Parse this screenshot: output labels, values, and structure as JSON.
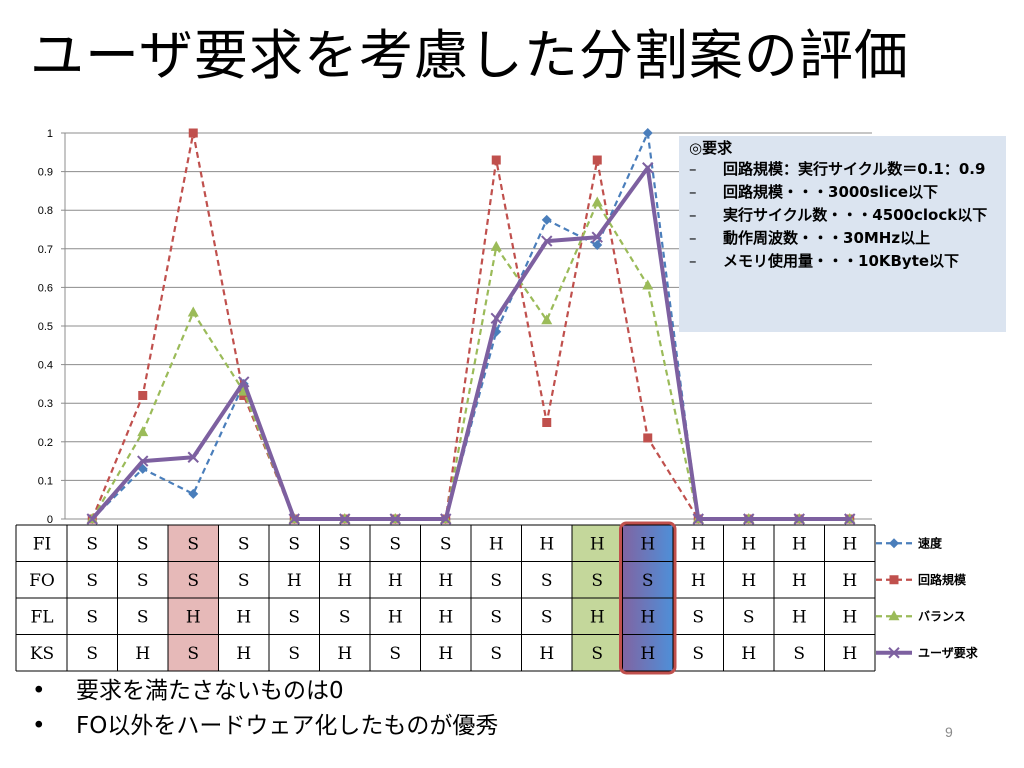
{
  "title": "ユーザ要求を考慮した分割案の評価",
  "chart_data": {
    "type": "line",
    "ylim": [
      0,
      1
    ],
    "yticks": [
      "0",
      "0.1",
      "0.2",
      "0.3",
      "0.4",
      "0.5",
      "0.6",
      "0.7",
      "0.8",
      "0.9",
      "1"
    ],
    "grid": true,
    "legend_position": "right",
    "series": [
      {
        "name": "速度",
        "color": "#4a7ebb",
        "style": "dashed",
        "marker": "diamond",
        "values": [
          0,
          0.13,
          0.065,
          0.35,
          0,
          0,
          0,
          0,
          0.485,
          0.775,
          0.71,
          1.0,
          0,
          0,
          0,
          0
        ]
      },
      {
        "name": "回路規模",
        "color": "#c0504d",
        "style": "dashed",
        "marker": "square",
        "values": [
          0,
          0.32,
          1.0,
          0.32,
          0,
          0,
          0,
          0,
          0.93,
          0.25,
          0.93,
          0.21,
          0,
          0,
          0,
          0
        ]
      },
      {
        "name": "バランス",
        "color": "#9bbb59",
        "style": "dashed",
        "marker": "triangle",
        "values": [
          0,
          0.225,
          0.535,
          0.33,
          0,
          0,
          0,
          0,
          0.705,
          0.515,
          0.82,
          0.605,
          0,
          0,
          0,
          0
        ]
      },
      {
        "name": "ユーザ要求",
        "color": "#7d60a0",
        "style": "solid",
        "marker": "x",
        "values": [
          0,
          0.15,
          0.16,
          0.355,
          0,
          0,
          0,
          0,
          0.52,
          0.72,
          0.73,
          0.91,
          0,
          0,
          0,
          0
        ]
      }
    ],
    "table": {
      "rows": [
        {
          "label": "FI",
          "cells": [
            "S",
            "S",
            "S",
            "S",
            "S",
            "S",
            "S",
            "S",
            "H",
            "H",
            "H",
            "H",
            "H",
            "H",
            "H",
            "H"
          ]
        },
        {
          "label": "FO",
          "cells": [
            "S",
            "S",
            "S",
            "S",
            "H",
            "H",
            "H",
            "H",
            "S",
            "S",
            "S",
            "S",
            "H",
            "H",
            "H",
            "H"
          ]
        },
        {
          "label": "FL",
          "cells": [
            "S",
            "S",
            "H",
            "H",
            "S",
            "S",
            "H",
            "H",
            "S",
            "S",
            "H",
            "H",
            "S",
            "S",
            "H",
            "H"
          ]
        },
        {
          "label": "KS",
          "cells": [
            "S",
            "H",
            "S",
            "H",
            "S",
            "H",
            "S",
            "H",
            "S",
            "H",
            "S",
            "H",
            "S",
            "H",
            "S",
            "H"
          ]
        }
      ],
      "highlight_columns": [
        {
          "index": 2,
          "color": "#e6b9b8"
        },
        {
          "index": 10,
          "color": "#c4d79b"
        },
        {
          "index": 11,
          "color": "#558ed5",
          "outline": "#c0504d"
        }
      ]
    }
  },
  "requirements": {
    "heading": "◎要求",
    "items": [
      "回路規模：実行サイクル数＝0.1：0.9",
      "回路規模・・・3000slice以下",
      "実行サイクル数・・・4500clock以下",
      "動作周波数・・・30MHz以上",
      "メモリ使用量・・・10KByte以下"
    ],
    "dash": "–"
  },
  "bullets": [
    "要求を満たさないものは0",
    "FO以外をハードウェア化したものが優秀"
  ],
  "bullet_symbol": "•",
  "page_number": "9"
}
